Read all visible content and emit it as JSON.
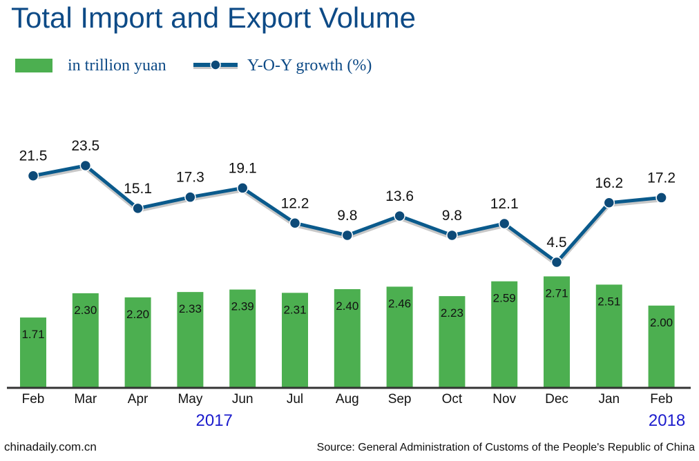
{
  "title": "Total Import and Export Volume",
  "legend": {
    "bars_label": "in trillion yuan",
    "line_label": "Y-O-Y growth (%)"
  },
  "colors": {
    "bar": "#4caf50",
    "line": "#0a5a8c",
    "line_shadow": "#c8c8c8",
    "marker": "#0d4a78",
    "title": "#0d4a86",
    "year": "#1a1acc",
    "axis": "#333333"
  },
  "chart_data": {
    "type": "bar",
    "categories": [
      "Feb",
      "Mar",
      "Apr",
      "May",
      "Jun",
      "Jul",
      "Aug",
      "Sep",
      "Oct",
      "Nov",
      "Dec",
      "Jan",
      "Feb"
    ],
    "series": [
      {
        "name": "in trillion yuan",
        "type": "bar",
        "values": [
          1.71,
          2.3,
          2.2,
          2.33,
          2.39,
          2.31,
          2.4,
          2.46,
          2.23,
          2.59,
          2.71,
          2.51,
          2.0
        ],
        "labels": [
          "1.71",
          "2.30",
          "2.20",
          "2.33",
          "2.39",
          "2.31",
          "2.40",
          "2.46",
          "2.23",
          "2.59",
          "2.71",
          "2.51",
          "2.00"
        ]
      },
      {
        "name": "Y-O-Y growth (%)",
        "type": "line",
        "values": [
          21.5,
          23.5,
          15.1,
          17.3,
          19.1,
          12.2,
          9.8,
          13.6,
          9.8,
          12.1,
          4.5,
          16.2,
          17.2
        ],
        "labels": [
          "21.5",
          "23.5",
          "15.1",
          "17.3",
          "19.1",
          "12.2",
          "9.8",
          "13.6",
          "9.8",
          "12.1",
          "4.5",
          "16.2",
          "17.2"
        ]
      }
    ],
    "year_labels": [
      {
        "text": "2017",
        "category_index": 4
      },
      {
        "text": "2018",
        "category_index": 12
      }
    ],
    "grid": false
  },
  "footer": {
    "site": "chinadaily.com.cn",
    "source": "Source: General Administration of Customs of the People's Republic of China"
  }
}
